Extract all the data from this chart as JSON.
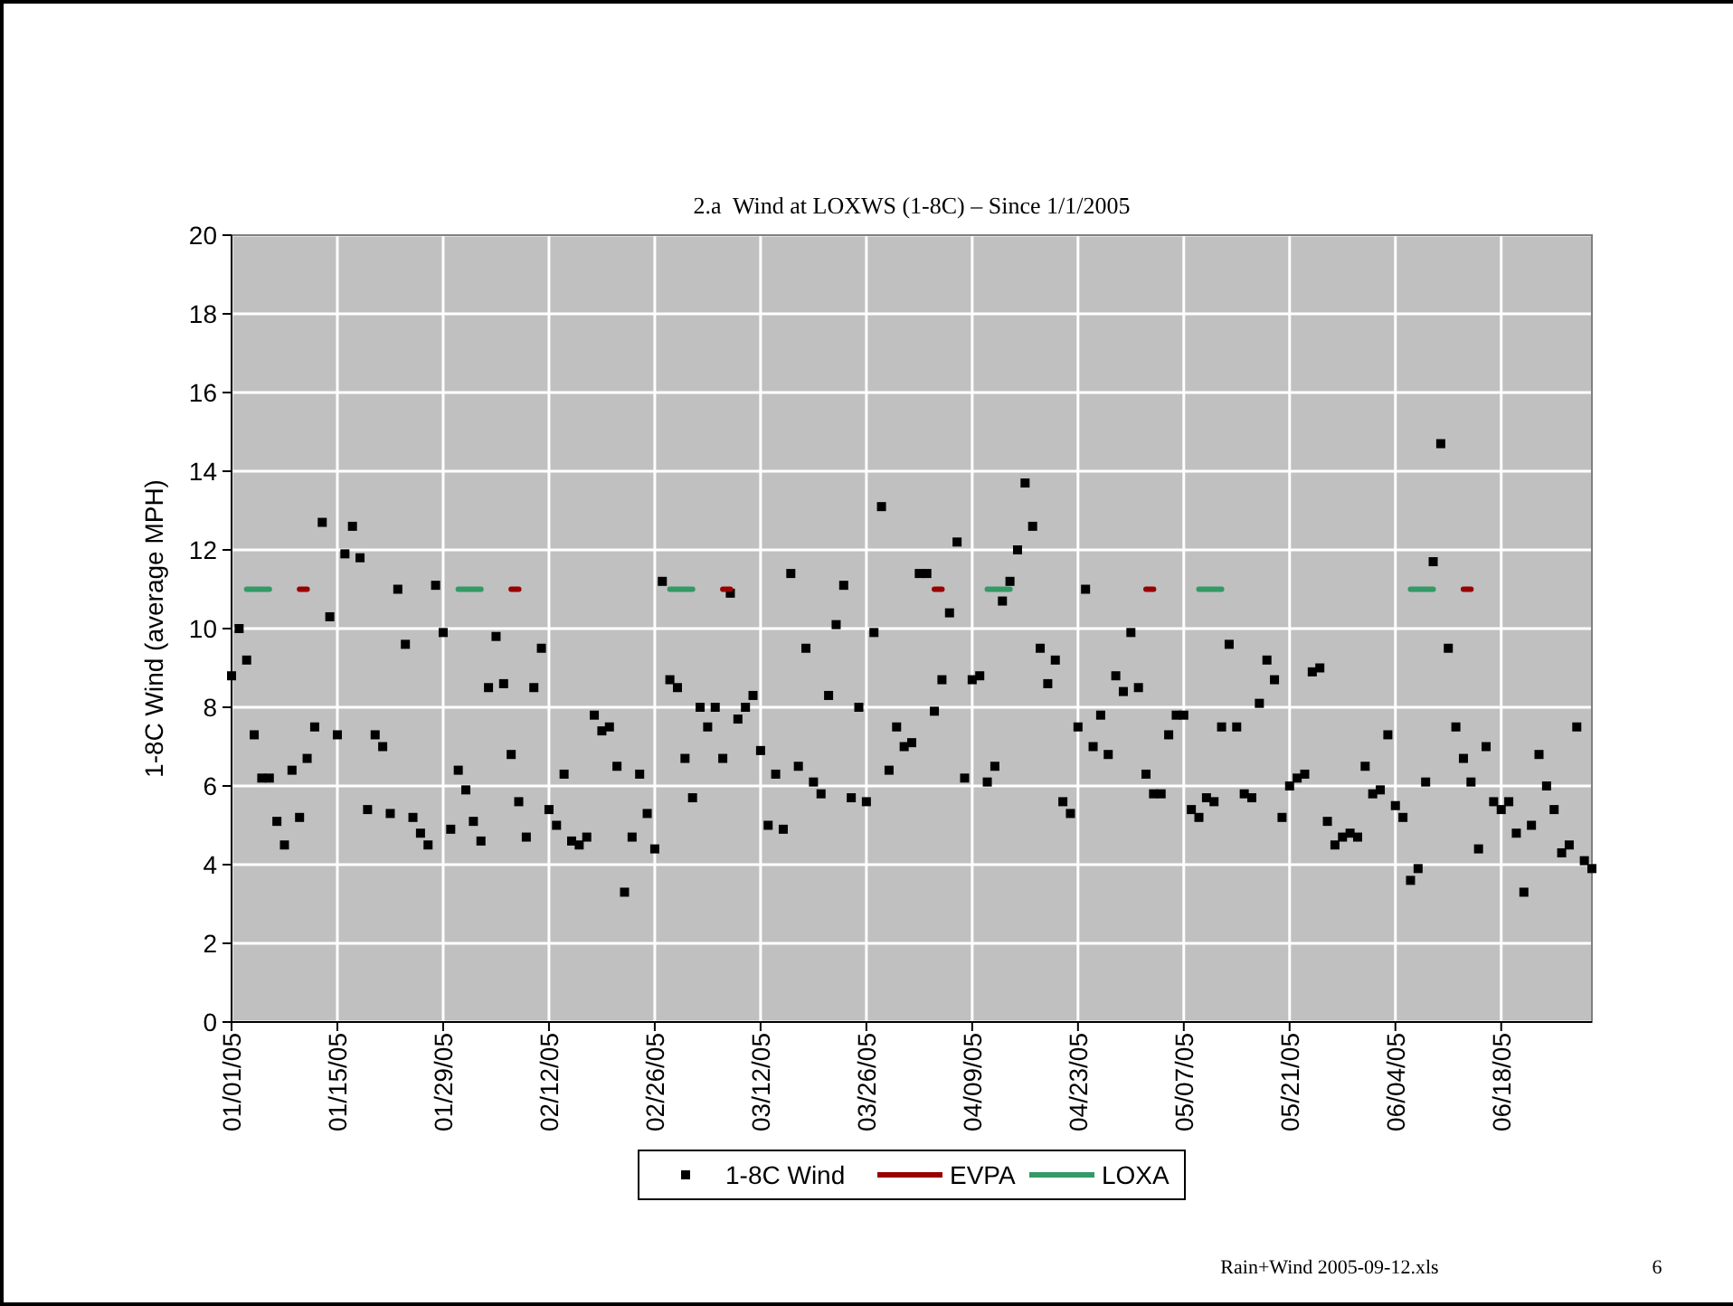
{
  "chart_data": {
    "type": "scatter",
    "title": "2.a  Wind at LOXWS (1-8C) – Since 1/1/2005",
    "ylabel": "1-8C Wind (average MPH)",
    "x": [
      "2005-01-01",
      "2005-01-02",
      "2005-01-03",
      "2005-01-04",
      "2005-01-05",
      "2005-01-06",
      "2005-01-07",
      "2005-01-08",
      "2005-01-09",
      "2005-01-10",
      "2005-01-11",
      "2005-01-12",
      "2005-01-13",
      "2005-01-14",
      "2005-01-15",
      "2005-01-16",
      "2005-01-17",
      "2005-01-18",
      "2005-01-19",
      "2005-01-20",
      "2005-01-21",
      "2005-01-22",
      "2005-01-23",
      "2005-01-24",
      "2005-01-25",
      "2005-01-26",
      "2005-01-27",
      "2005-01-28",
      "2005-01-29",
      "2005-01-30",
      "2005-01-31",
      "2005-02-01",
      "2005-02-02",
      "2005-02-03",
      "2005-02-04",
      "2005-02-05",
      "2005-02-06",
      "2005-02-07",
      "2005-02-08",
      "2005-02-09",
      "2005-02-10",
      "2005-02-11",
      "2005-02-12",
      "2005-02-13",
      "2005-02-14",
      "2005-02-15",
      "2005-02-16",
      "2005-02-17",
      "2005-02-18",
      "2005-02-19",
      "2005-02-20",
      "2005-02-21",
      "2005-02-22",
      "2005-02-23",
      "2005-02-24",
      "2005-02-25",
      "2005-02-26",
      "2005-02-27",
      "2005-02-28",
      "2005-03-01",
      "2005-03-02",
      "2005-03-03",
      "2005-03-04",
      "2005-03-05",
      "2005-03-06",
      "2005-03-07",
      "2005-03-08",
      "2005-03-09",
      "2005-03-10",
      "2005-03-11",
      "2005-03-12",
      "2005-03-13",
      "2005-03-14",
      "2005-03-15",
      "2005-03-16",
      "2005-03-17",
      "2005-03-18",
      "2005-03-19",
      "2005-03-20",
      "2005-03-21",
      "2005-03-22",
      "2005-03-23",
      "2005-03-24",
      "2005-03-25",
      "2005-03-26",
      "2005-03-27",
      "2005-03-28",
      "2005-03-29",
      "2005-03-30",
      "2005-03-31",
      "2005-04-01",
      "2005-04-02",
      "2005-04-03",
      "2005-04-04",
      "2005-04-05",
      "2005-04-06",
      "2005-04-07",
      "2005-04-08",
      "2005-04-09",
      "2005-04-10",
      "2005-04-11",
      "2005-04-12",
      "2005-04-13",
      "2005-04-14",
      "2005-04-15",
      "2005-04-16",
      "2005-04-17",
      "2005-04-18",
      "2005-04-19",
      "2005-04-20",
      "2005-04-21",
      "2005-04-22",
      "2005-04-23",
      "2005-04-24",
      "2005-04-25",
      "2005-04-26",
      "2005-04-27",
      "2005-04-28",
      "2005-04-29",
      "2005-04-30",
      "2005-05-01",
      "2005-05-02",
      "2005-05-03",
      "2005-05-04",
      "2005-05-05",
      "2005-05-06",
      "2005-05-07",
      "2005-05-08",
      "2005-05-09",
      "2005-05-10",
      "2005-05-11",
      "2005-05-12",
      "2005-05-13",
      "2005-05-14",
      "2005-05-15",
      "2005-05-16",
      "2005-05-17",
      "2005-05-18",
      "2005-05-19",
      "2005-05-20",
      "2005-05-21",
      "2005-05-22",
      "2005-05-23",
      "2005-05-24",
      "2005-05-25",
      "2005-05-26",
      "2005-05-27",
      "2005-05-28",
      "2005-05-29",
      "2005-05-30",
      "2005-05-31",
      "2005-06-01",
      "2005-06-02",
      "2005-06-03",
      "2005-06-04",
      "2005-06-05",
      "2005-06-06",
      "2005-06-07",
      "2005-06-08",
      "2005-06-09",
      "2005-06-10",
      "2005-06-11",
      "2005-06-12",
      "2005-06-13",
      "2005-06-14",
      "2005-06-15",
      "2005-06-16",
      "2005-06-17",
      "2005-06-18",
      "2005-06-19",
      "2005-06-20",
      "2005-06-21",
      "2005-06-22",
      "2005-06-23",
      "2005-06-24",
      "2005-06-25",
      "2005-06-26",
      "2005-06-27",
      "2005-06-28",
      "2005-06-29",
      "2005-06-30"
    ],
    "series": [
      {
        "name": "1-8C Wind",
        "marker": "square",
        "color": "#000000",
        "values": [
          8.8,
          10.0,
          9.2,
          7.3,
          6.2,
          6.2,
          5.1,
          4.5,
          6.4,
          5.2,
          6.7,
          7.5,
          12.7,
          10.3,
          7.3,
          11.9,
          12.6,
          11.8,
          5.4,
          7.3,
          7.0,
          5.3,
          11.0,
          9.6,
          5.2,
          4.8,
          4.5,
          11.1,
          9.9,
          4.9,
          6.4,
          5.9,
          5.1,
          4.6,
          8.5,
          9.8,
          8.6,
          6.8,
          5.6,
          4.7,
          8.5,
          9.5,
          5.4,
          5.0,
          6.3,
          4.6,
          4.5,
          4.7,
          7.8,
          7.4,
          7.5,
          6.5,
          3.3,
          4.7,
          6.3,
          5.3,
          4.4,
          11.2,
          8.7,
          8.5,
          6.7,
          5.7,
          8.0,
          7.5,
          8.0,
          6.7,
          10.9,
          7.7,
          8.0,
          8.3,
          6.9,
          5.0,
          6.3,
          4.9,
          11.4,
          6.5,
          9.5,
          6.1,
          5.8,
          8.3,
          10.1,
          11.1,
          5.7,
          8.0,
          5.6,
          9.9,
          13.1,
          6.4,
          7.5,
          7.0,
          7.1,
          11.4,
          11.4,
          7.9,
          8.7,
          10.4,
          12.2,
          6.2,
          8.7,
          8.8,
          6.1,
          6.5,
          10.7,
          11.2,
          12.0,
          13.7,
          12.6,
          9.5,
          8.6,
          9.2,
          5.6,
          5.3,
          7.5,
          11.0,
          7.0,
          7.8,
          6.8,
          8.8,
          8.4,
          9.9,
          8.5,
          6.3,
          5.8,
          5.8,
          7.3,
          7.8,
          7.8,
          5.4,
          5.2,
          5.7,
          5.6,
          7.5,
          9.6,
          7.5,
          5.8,
          5.7,
          8.1,
          9.2,
          8.7,
          5.2,
          6.0,
          6.2,
          6.3,
          8.9,
          9.0,
          5.1,
          4.5,
          4.7,
          4.8,
          4.7,
          6.5,
          5.8,
          5.9,
          7.3,
          5.5,
          5.2,
          3.6,
          3.9,
          6.1,
          11.7,
          14.7,
          9.5,
          7.5,
          6.7,
          6.1,
          4.4,
          7.0,
          5.6,
          5.4,
          5.6,
          4.8,
          3.3,
          5.0,
          6.8,
          6.0,
          5.4,
          4.3,
          4.5,
          7.5,
          4.1,
          3.9
        ]
      },
      {
        "name": "EVPA",
        "type": "line",
        "marker": "none",
        "color": "#990000",
        "x": [
          "2005-01-10",
          "2005-01-11"
        ],
        "values": [
          11,
          11
        ]
      },
      {
        "type": "line",
        "marker": "none",
        "color": "#990000",
        "x": [
          "2005-02-07",
          "2005-02-08"
        ],
        "values": [
          11,
          11
        ]
      },
      {
        "type": "line",
        "marker": "none",
        "color": "#990000",
        "x": [
          "2005-03-07",
          "2005-03-08"
        ],
        "values": [
          11,
          11
        ]
      },
      {
        "type": "line",
        "marker": "none",
        "color": "#990000",
        "x": [
          "2005-04-04",
          "2005-04-05"
        ],
        "values": [
          11,
          11
        ]
      },
      {
        "type": "line",
        "marker": "none",
        "color": "#990000",
        "x": [
          "2005-05-02",
          "2005-05-03"
        ],
        "values": [
          11,
          11
        ]
      },
      {
        "type": "line",
        "marker": "none",
        "color": "#990000",
        "x": [
          "2005-06-13",
          "2005-06-14"
        ],
        "values": [
          11,
          11
        ]
      },
      {
        "name": "LOXA",
        "type": "line",
        "marker": "none",
        "color": "#339966",
        "x": [
          "2005-01-03",
          "2005-01-06"
        ],
        "values": [
          11,
          11
        ]
      },
      {
        "type": "line",
        "marker": "none",
        "color": "#339966",
        "x": [
          "2005-01-31",
          "2005-02-03"
        ],
        "values": [
          11,
          11
        ]
      },
      {
        "type": "line",
        "marker": "none",
        "color": "#339966",
        "x": [
          "2005-02-28",
          "2005-03-03"
        ],
        "values": [
          11,
          11
        ]
      },
      {
        "type": "line",
        "marker": "none",
        "color": "#339966",
        "x": [
          "2005-04-11",
          "2005-04-14"
        ],
        "values": [
          11,
          11
        ]
      },
      {
        "type": "line",
        "marker": "none",
        "color": "#339966",
        "x": [
          "2005-05-09",
          "2005-05-12"
        ],
        "values": [
          11,
          11
        ]
      },
      {
        "type": "line",
        "marker": "none",
        "color": "#339966",
        "x": [
          "2005-06-06",
          "2005-06-09"
        ],
        "values": [
          11,
          11
        ]
      }
    ],
    "xlim": [
      "2005-01-01",
      "2005-06-30"
    ],
    "xticks": [
      {
        "value": "2005-01-01",
        "label": "01/01/05"
      },
      {
        "value": "2005-01-15",
        "label": "01/15/05"
      },
      {
        "value": "2005-01-29",
        "label": "01/29/05"
      },
      {
        "value": "2005-02-12",
        "label": "02/12/05"
      },
      {
        "value": "2005-02-26",
        "label": "02/26/05"
      },
      {
        "value": "2005-03-12",
        "label": "03/12/05"
      },
      {
        "value": "2005-03-26",
        "label": "03/26/05"
      },
      {
        "value": "2005-04-09",
        "label": "04/09/05"
      },
      {
        "value": "2005-04-23",
        "label": "04/23/05"
      },
      {
        "value": "2005-05-07",
        "label": "05/07/05"
      },
      {
        "value": "2005-05-21",
        "label": "05/21/05"
      },
      {
        "value": "2005-06-04",
        "label": "06/04/05"
      },
      {
        "value": "2005-06-18",
        "label": "06/18/05"
      }
    ],
    "ylim": [
      0,
      20
    ],
    "yticks": [
      0,
      2,
      4,
      6,
      8,
      10,
      12,
      14,
      16,
      18,
      20
    ],
    "grid": true,
    "legend": "bottom",
    "annotations": [
      "Rain+Wind 2005-09-12.xls",
      "6"
    ]
  }
}
